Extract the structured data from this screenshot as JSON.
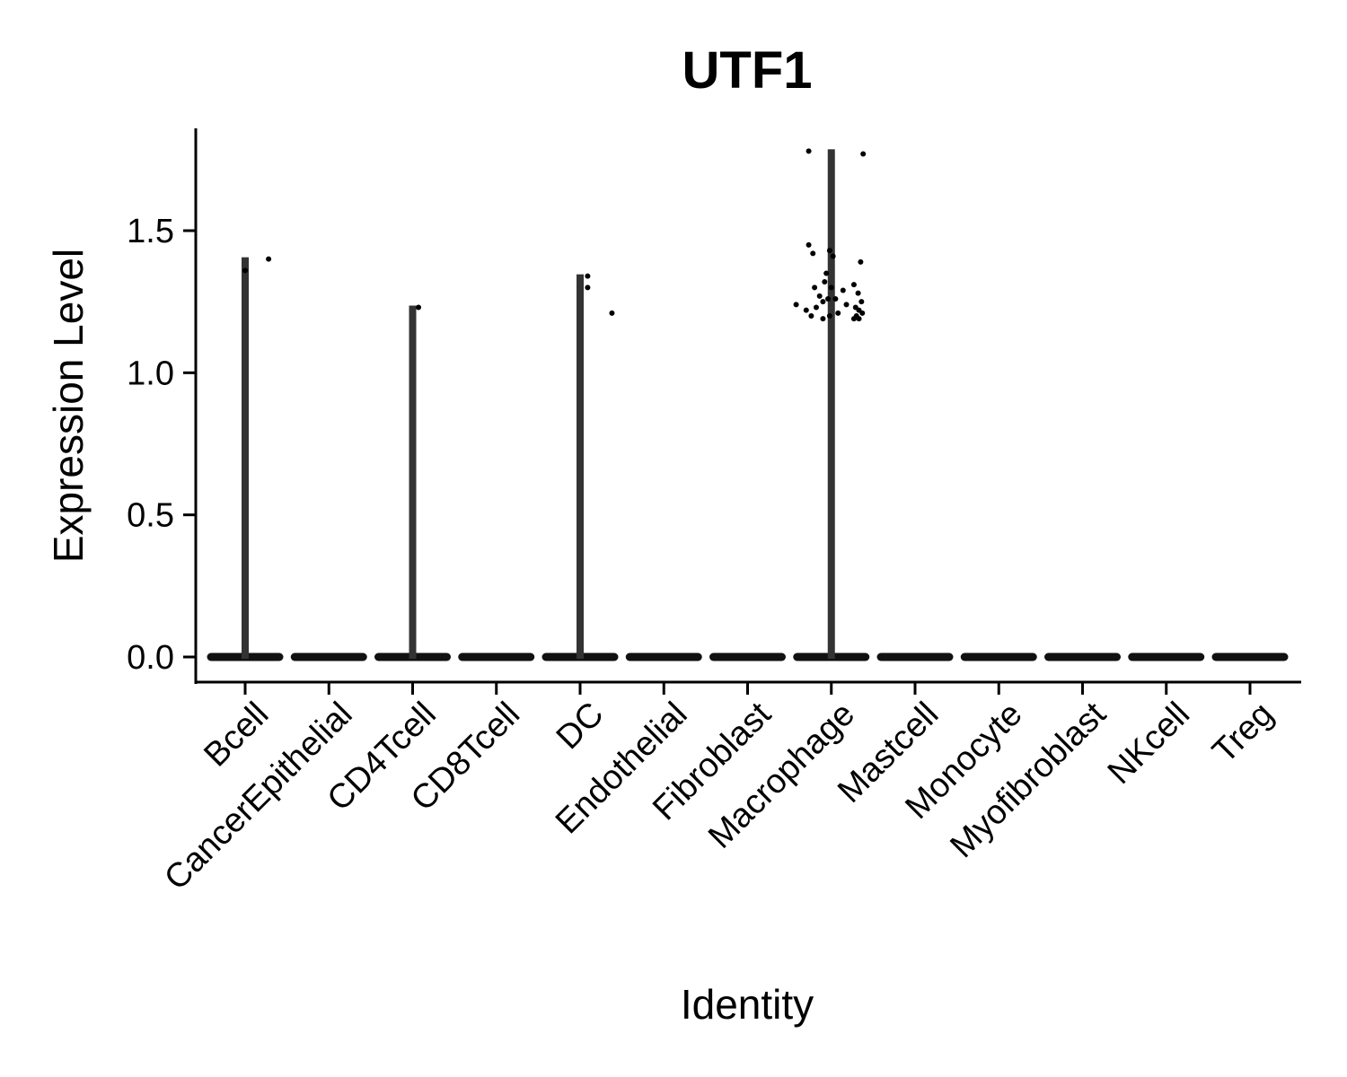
{
  "chart_data": {
    "type": "violin",
    "title": "UTF1",
    "xlabel": "Identity",
    "ylabel": "Expression Level",
    "ylim": [
      -0.09,
      1.87
    ],
    "yticks": [
      0.0,
      0.5,
      1.0,
      1.5
    ],
    "ytick_labels": [
      "0.0",
      "0.5",
      "1.0",
      "1.5"
    ],
    "grid": false,
    "legend": "none",
    "categories": [
      "Bcell",
      "CancerEpithelial",
      "CD4Tcell",
      "CD8Tcell",
      "DC",
      "Endothelial",
      "Fibroblast",
      "Macrophage",
      "Mastcell",
      "Monocyte",
      "Myofibroblast",
      "NKcell",
      "Treg"
    ],
    "max_values": [
      1.4,
      0,
      1.23,
      0,
      1.34,
      0,
      0,
      1.78,
      0,
      0,
      0,
      0,
      0
    ],
    "points": [
      {
        "category": "Bcell",
        "y": 1.4,
        "jitter": 0.28
      },
      {
        "category": "Bcell",
        "y": 1.36,
        "jitter": 0.0
      },
      {
        "category": "CD4Tcell",
        "y": 1.23,
        "jitter": 0.07
      },
      {
        "category": "DC",
        "y": 1.34,
        "jitter": 0.09
      },
      {
        "category": "DC",
        "y": 1.3,
        "jitter": 0.09
      },
      {
        "category": "DC",
        "y": 1.21,
        "jitter": 0.38
      },
      {
        "category": "Macrophage",
        "y": 1.78,
        "jitter": -0.27
      },
      {
        "category": "Macrophage",
        "y": 1.77,
        "jitter": 0.38
      },
      {
        "category": "Macrophage",
        "y": 1.45,
        "jitter": -0.27
      },
      {
        "category": "Macrophage",
        "y": 1.43,
        "jitter": -0.02
      },
      {
        "category": "Macrophage",
        "y": 1.42,
        "jitter": -0.22
      },
      {
        "category": "Macrophage",
        "y": 1.41,
        "jitter": 0.02
      },
      {
        "category": "Macrophage",
        "y": 1.39,
        "jitter": 0.35
      },
      {
        "category": "Macrophage",
        "y": 1.35,
        "jitter": -0.06
      },
      {
        "category": "Macrophage",
        "y": 1.32,
        "jitter": -0.08
      },
      {
        "category": "Macrophage",
        "y": 1.31,
        "jitter": 0.27
      },
      {
        "category": "Macrophage",
        "y": 1.3,
        "jitter": -0.2
      },
      {
        "category": "Macrophage",
        "y": 1.3,
        "jitter": 0.0
      },
      {
        "category": "Macrophage",
        "y": 1.29,
        "jitter": 0.14
      },
      {
        "category": "Macrophage",
        "y": 1.28,
        "jitter": 0.32
      },
      {
        "category": "Macrophage",
        "y": 1.27,
        "jitter": -0.14
      },
      {
        "category": "Macrophage",
        "y": 1.26,
        "jitter": -0.04
      },
      {
        "category": "Macrophage",
        "y": 1.26,
        "jitter": 0.05
      },
      {
        "category": "Macrophage",
        "y": 1.25,
        "jitter": -0.1
      },
      {
        "category": "Macrophage",
        "y": 1.25,
        "jitter": 0.36
      },
      {
        "category": "Macrophage",
        "y": 1.24,
        "jitter": -0.42
      },
      {
        "category": "Macrophage",
        "y": 1.24,
        "jitter": 0.18
      },
      {
        "category": "Macrophage",
        "y": 1.23,
        "jitter": -0.18
      },
      {
        "category": "Macrophage",
        "y": 1.23,
        "jitter": 0.29
      },
      {
        "category": "Macrophage",
        "y": 1.22,
        "jitter": 0.33
      },
      {
        "category": "Macrophage",
        "y": 1.22,
        "jitter": -0.3
      },
      {
        "category": "Macrophage",
        "y": 1.21,
        "jitter": 0.08
      },
      {
        "category": "Macrophage",
        "y": 1.21,
        "jitter": 0.37
      },
      {
        "category": "Macrophage",
        "y": 1.2,
        "jitter": 0.3
      },
      {
        "category": "Macrophage",
        "y": 1.2,
        "jitter": -0.24
      },
      {
        "category": "Macrophage",
        "y": 1.2,
        "jitter": -0.02
      },
      {
        "category": "Macrophage",
        "y": 1.19,
        "jitter": 0.33
      },
      {
        "category": "Macrophage",
        "y": 1.19,
        "jitter": -0.1
      },
      {
        "category": "Macrophage",
        "y": 1.19,
        "jitter": 0.27
      }
    ],
    "colors": {
      "violin": "#333333",
      "points": "#000000",
      "axis": "#000000"
    }
  }
}
